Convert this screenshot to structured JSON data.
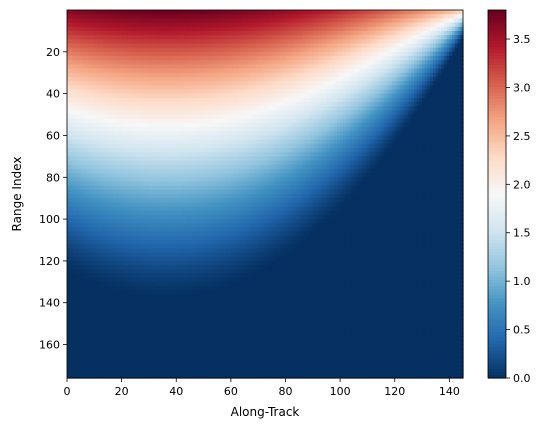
{
  "chart_data": {
    "type": "heatmap",
    "title": "",
    "xlabel": "Along-Track",
    "ylabel": "Range Index",
    "x_range": [
      0,
      145
    ],
    "y_range": [
      176,
      0
    ],
    "y_axis_inverted": true,
    "x_ticks": [
      "0",
      "20",
      "40",
      "60",
      "80",
      "100",
      "120",
      "140"
    ],
    "y_ticks": [
      "20",
      "40",
      "60",
      "80",
      "100",
      "120",
      "140",
      "160"
    ],
    "colorbar": {
      "colormap": "RdBu_r",
      "range": [
        0.0,
        3.8
      ],
      "ticks": [
        "0.0",
        "0.5",
        "1.0",
        "1.5",
        "2.0",
        "2.5",
        "3.0",
        "3.5"
      ]
    },
    "field": {
      "description_values": "value peaks near along-track 36 at range index 0 and decreases with range, boundary of zero curving upward to the right",
      "peak_value": 3.8,
      "peak_along_track": 36,
      "zero_contour_range_at_peak": 138,
      "zero_contour_range_at_along_track_145": 0
    },
    "colors": {
      "low": "#053061",
      "mid": "#f7f7f7",
      "high": "#67001f"
    }
  }
}
